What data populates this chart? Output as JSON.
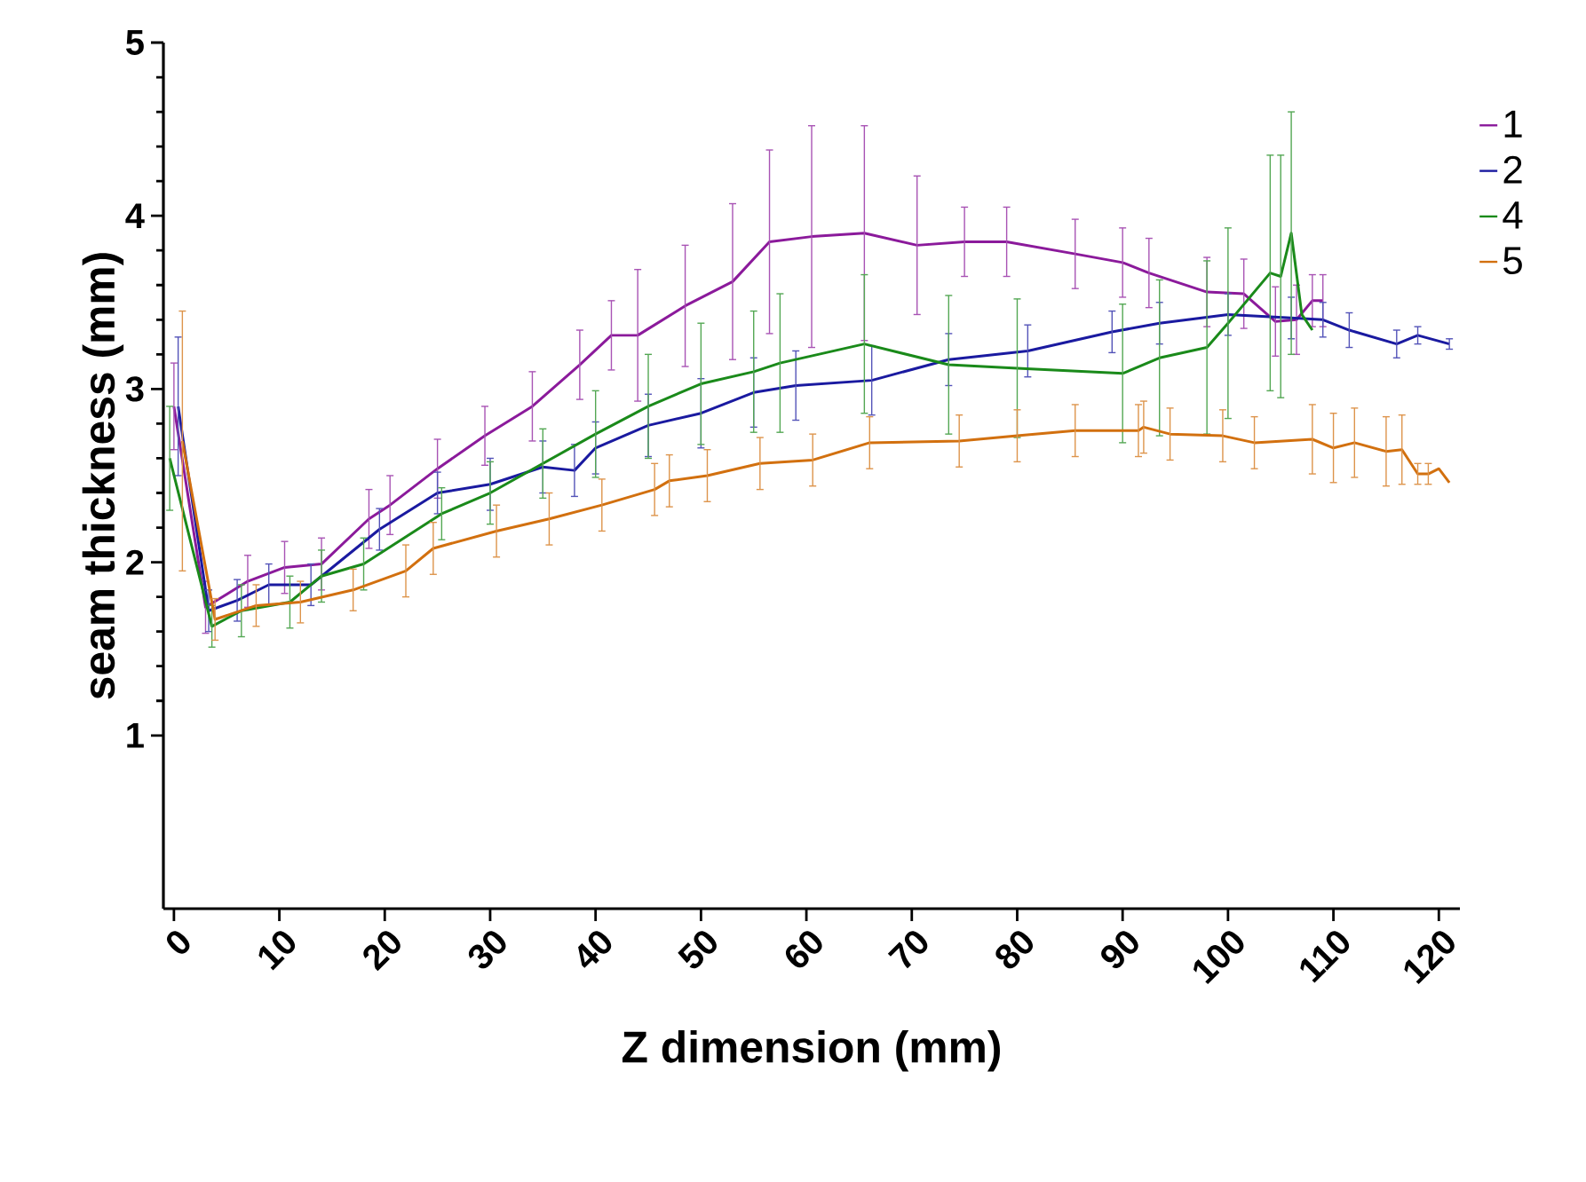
{
  "chart_data": {
    "type": "line",
    "xlabel": "Z dimension (mm)",
    "ylabel": "seam thickness (mm)",
    "xlim": [
      -1,
      122
    ],
    "ylim": [
      0,
      5
    ],
    "xticks": [
      0,
      10,
      20,
      30,
      40,
      50,
      60,
      70,
      80,
      90,
      100,
      110,
      120
    ],
    "yticks": [
      1,
      2,
      3,
      4,
      5
    ],
    "legend": "right",
    "line_style": "solid",
    "marker": "none",
    "series": [
      {
        "name": "1",
        "color": "#8b1a9b",
        "x": [
          0,
          3,
          7,
          10.5,
          14,
          18.5,
          20.5,
          25,
          29.5,
          34,
          38.5,
          41.5,
          44,
          48.5,
          53,
          56.5,
          60.5,
          65.5,
          70.5,
          75,
          79,
          85.5,
          90,
          92.5,
          98,
          101.5,
          104.5,
          106.5,
          108,
          109
        ],
        "values": [
          2.9,
          1.74,
          1.89,
          1.97,
          1.99,
          2.25,
          2.33,
          2.54,
          2.73,
          2.9,
          3.14,
          3.31,
          3.31,
          3.48,
          3.62,
          3.85,
          3.88,
          3.9,
          3.83,
          3.85,
          3.85,
          3.78,
          3.73,
          3.67,
          3.56,
          3.55,
          3.39,
          3.4,
          3.51,
          3.51
        ],
        "errors": [
          0.25,
          0.15,
          0.15,
          0.15,
          0.15,
          0.17,
          0.17,
          0.17,
          0.17,
          0.2,
          0.2,
          0.2,
          0.38,
          0.35,
          0.45,
          0.53,
          0.64,
          0.62,
          0.4,
          0.2,
          0.2,
          0.2,
          0.2,
          0.2,
          0.2,
          0.2,
          0.2,
          0.2,
          0.15,
          0.15
        ]
      },
      {
        "name": "2",
        "color": "#1a1aa0",
        "x": [
          0.4,
          3.3,
          6,
          9,
          13,
          19.5,
          25,
          30,
          35,
          38,
          40,
          45,
          50,
          55,
          59,
          66.2,
          73.5,
          81,
          89,
          93.5,
          100,
          106,
          109,
          111.5,
          116,
          118,
          121
        ],
        "values": [
          2.9,
          1.72,
          1.78,
          1.87,
          1.87,
          2.19,
          2.4,
          2.45,
          2.55,
          2.53,
          2.66,
          2.79,
          2.86,
          2.98,
          3.02,
          3.05,
          3.17,
          3.22,
          3.33,
          3.38,
          3.43,
          3.41,
          3.4,
          3.34,
          3.26,
          3.31,
          3.26
        ],
        "errors": [
          0.4,
          0.12,
          0.12,
          0.12,
          0.12,
          0.12,
          0.12,
          0.15,
          0.15,
          0.15,
          0.15,
          0.18,
          0.2,
          0.2,
          0.2,
          0.2,
          0.15,
          0.15,
          0.12,
          0.12,
          0.12,
          0.12,
          0.1,
          0.1,
          0.08,
          0.05,
          0.03
        ]
      },
      {
        "name": "4",
        "color": "#1a8a1a",
        "x": [
          -0.4,
          3.6,
          6.4,
          11,
          14,
          18,
          25.4,
          30,
          35,
          40,
          45,
          50,
          55,
          57.5,
          65.5,
          73.5,
          80,
          90,
          93.5,
          98,
          100,
          104,
          105,
          106,
          107,
          108
        ],
        "values": [
          2.6,
          1.63,
          1.72,
          1.77,
          1.92,
          1.99,
          2.28,
          2.4,
          2.57,
          2.74,
          2.9,
          3.03,
          3.1,
          3.15,
          3.26,
          3.14,
          3.12,
          3.09,
          3.18,
          3.24,
          3.38,
          3.67,
          3.65,
          3.9,
          3.43,
          3.34
        ],
        "errors": [
          0.3,
          0.12,
          0.15,
          0.15,
          0.15,
          0.15,
          0.15,
          0.18,
          0.2,
          0.25,
          0.3,
          0.35,
          0.35,
          0.4,
          0.4,
          0.4,
          0.4,
          0.4,
          0.45,
          0.5,
          0.55,
          0.68,
          0.7,
          0.7,
          null,
          null
        ]
      },
      {
        "name": "5",
        "color": "#d2700f",
        "x": [
          0.8,
          3.9,
          7.8,
          12,
          17,
          22,
          24.6,
          30.6,
          35.6,
          40.6,
          45.6,
          47,
          50.6,
          55.6,
          60.6,
          66,
          74.5,
          80,
          85.5,
          91.5,
          92,
          94.5,
          99.5,
          102.5,
          108,
          110,
          112,
          115,
          116.5,
          118,
          119,
          120,
          121
        ],
        "values": [
          2.7,
          1.67,
          1.75,
          1.77,
          1.84,
          1.95,
          2.08,
          2.18,
          2.25,
          2.33,
          2.42,
          2.47,
          2.5,
          2.57,
          2.59,
          2.69,
          2.7,
          2.73,
          2.76,
          2.76,
          2.78,
          2.74,
          2.73,
          2.69,
          2.71,
          2.66,
          2.69,
          2.64,
          2.65,
          2.51,
          2.51,
          2.54,
          2.46
        ],
        "errors": [
          0.75,
          0.12,
          0.12,
          0.12,
          0.12,
          0.15,
          0.15,
          0.15,
          0.15,
          0.15,
          0.15,
          0.15,
          0.15,
          0.15,
          0.15,
          0.15,
          0.15,
          0.15,
          0.15,
          0.15,
          0.15,
          0.15,
          0.15,
          0.15,
          0.2,
          0.2,
          0.2,
          0.2,
          0.2,
          0.06,
          0.06,
          null,
          null
        ]
      }
    ]
  }
}
